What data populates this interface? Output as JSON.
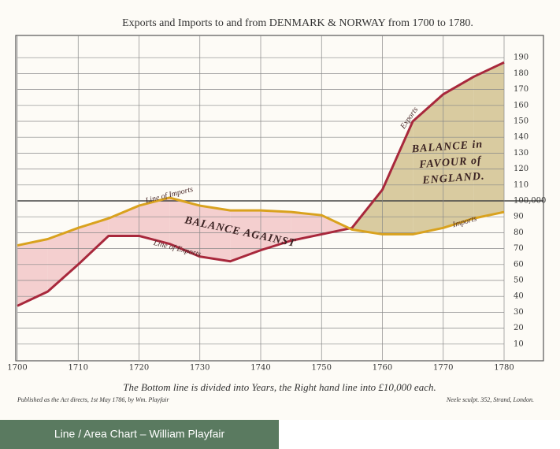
{
  "chart_data": {
    "type": "line",
    "title": "Exports and Imports to and from DENMARK & NORWAY from 1700 to 1780.",
    "x": [
      1700,
      1705,
      1710,
      1715,
      1720,
      1725,
      1730,
      1735,
      1740,
      1745,
      1750,
      1755,
      1760,
      1765,
      1770,
      1775,
      1780
    ],
    "series": [
      {
        "name": "Exports",
        "color": "#a8283c",
        "values": [
          34,
          43,
          60,
          78,
          78,
          73,
          65,
          62,
          69,
          75,
          79,
          83,
          107,
          150,
          167,
          178,
          187
        ]
      },
      {
        "name": "Imports",
        "color": "#d9a21e",
        "values": [
          72,
          76,
          83,
          89,
          97,
          102,
          97,
          94,
          94,
          93,
          91,
          82,
          79,
          79,
          83,
          89,
          93
        ]
      }
    ],
    "xlim": [
      1700,
      1780
    ],
    "xticks": [
      1700,
      1710,
      1720,
      1730,
      1740,
      1750,
      1760,
      1770,
      1780
    ],
    "ylim": [
      0,
      200
    ],
    "yticks": [
      10,
      20,
      30,
      40,
      50,
      60,
      70,
      80,
      90,
      {
        "value": 100,
        "label": "100,000"
      },
      110,
      120,
      130,
      140,
      150,
      160,
      170,
      180,
      190
    ],
    "grid": true,
    "area_colors": {
      "against": "#f4cfcf",
      "favour": "#d9cba0"
    },
    "annotations": [
      "Line of Imports",
      "Line of Exports",
      "Exports",
      "Imports",
      "BALANCE AGAINST"
    ],
    "favour_label": [
      "BALANCE in",
      "FAVOUR of",
      "ENGLAND."
    ],
    "footer": "The Bottom line is divided into Years, the Right hand line into £10,000 each.",
    "publisher_note": "Published as the Act directs, 1st May 1786, by Wm. Playfair",
    "engraver_note": "Neele sculpt. 352, Strand, London.",
    "caption": "Line / Area Chart – William Playfair"
  }
}
